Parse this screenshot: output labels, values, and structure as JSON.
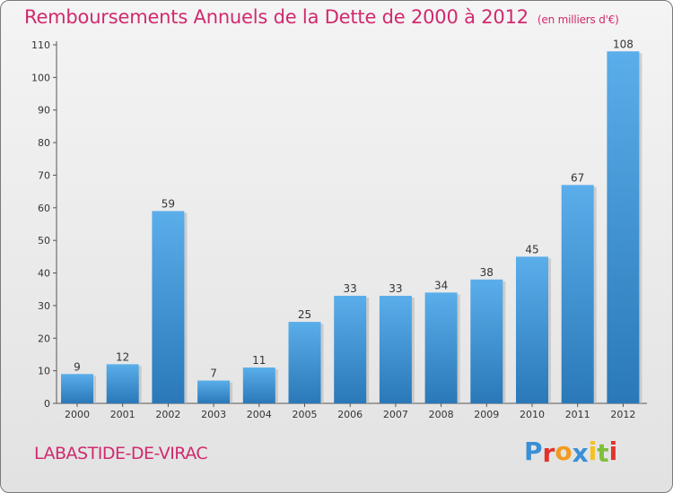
{
  "title": "Remboursements Annuels de la Dette de 2000 à 2012",
  "unit": "(en milliers d'€)",
  "commune": "LABASTIDE-DE-VIRAC",
  "logo": {
    "text": "Proxiti",
    "letter_colors": [
      "#3a8fd6",
      "#e2332b",
      "#f39a1e",
      "#3a8fd6",
      "#f5c11e",
      "#7fbf3a",
      "#e2332b"
    ]
  },
  "colors": {
    "title": "#d02a6e",
    "bar_top": "#5aaeea",
    "bar_bottom": "#2a78b8"
  },
  "chart_data": {
    "type": "bar",
    "categories": [
      "2000",
      "2001",
      "2002",
      "2003",
      "2004",
      "2005",
      "2006",
      "2007",
      "2008",
      "2009",
      "2010",
      "2011",
      "2012"
    ],
    "values": [
      9,
      12,
      59,
      7,
      11,
      25,
      33,
      33,
      34,
      38,
      45,
      67,
      108
    ],
    "ylim": [
      0,
      110
    ],
    "yticks": [
      0,
      10,
      20,
      30,
      40,
      50,
      60,
      70,
      80,
      90,
      100,
      110
    ],
    "grid": false,
    "data_labels": true
  }
}
